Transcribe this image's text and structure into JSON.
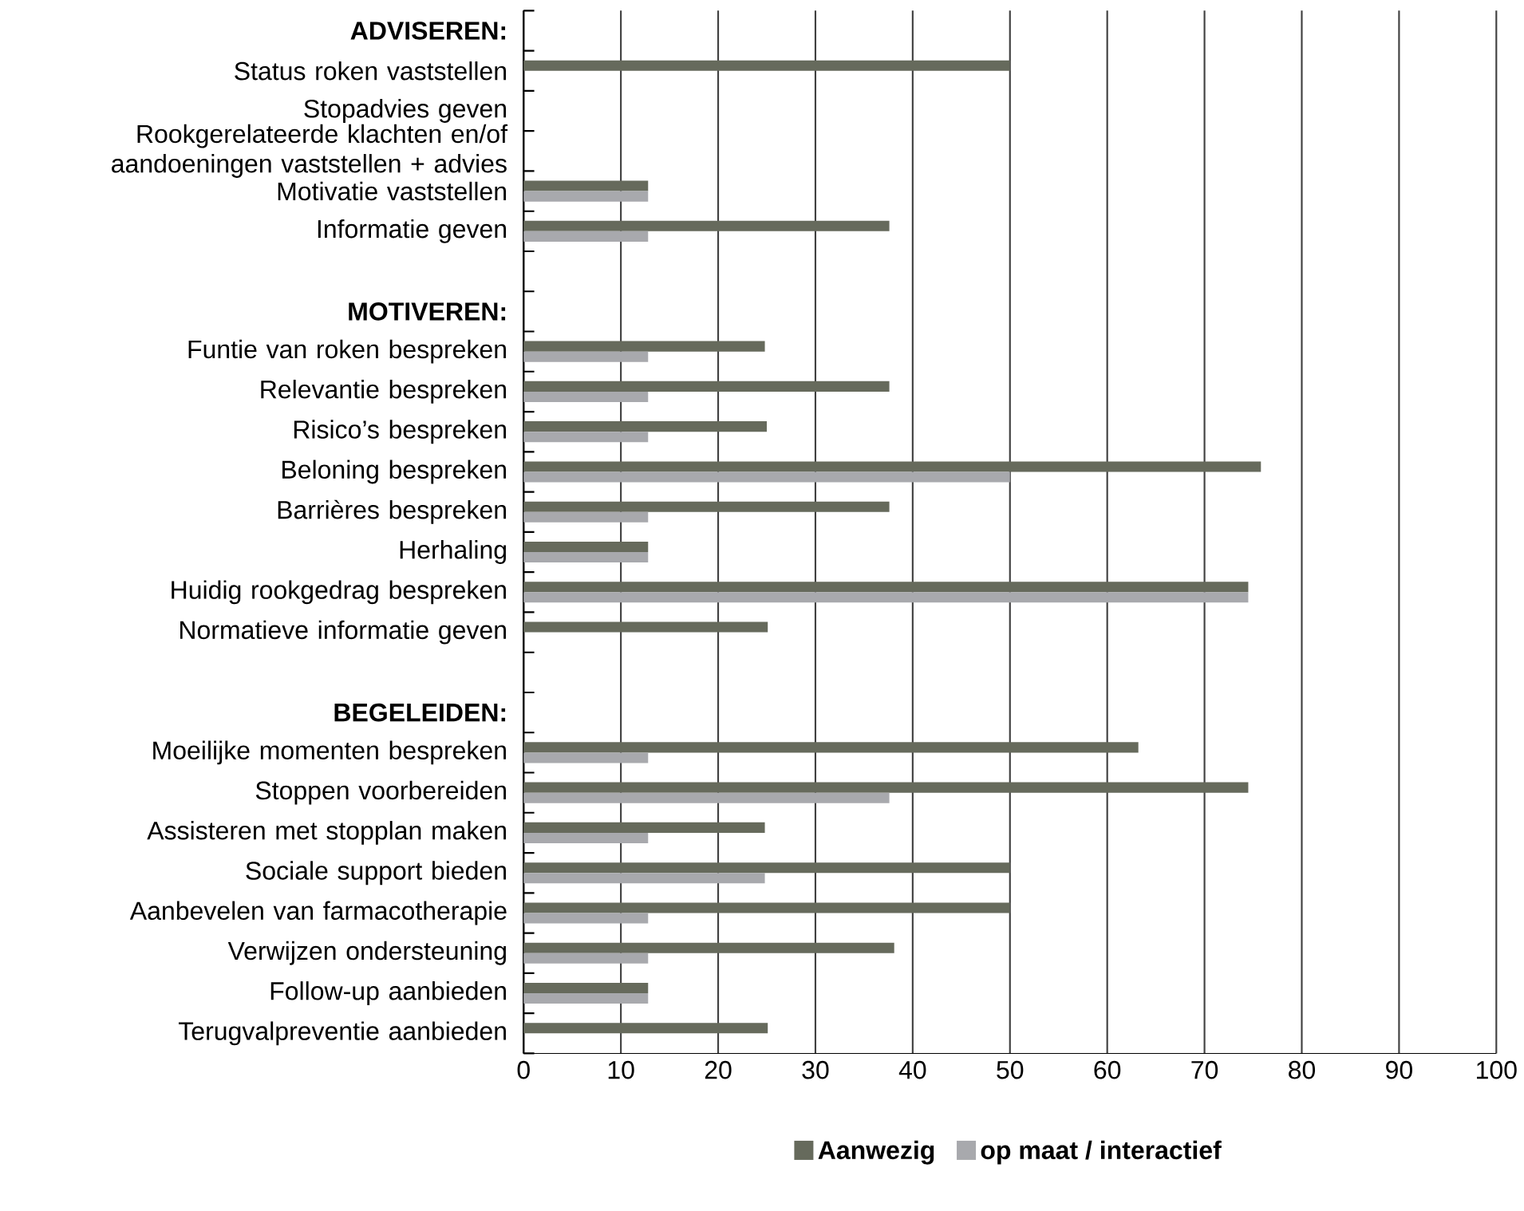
{
  "chart_data": {
    "type": "bar",
    "orientation": "horizontal",
    "categories": [
      "**ADVISEREN:**",
      "Status roken vaststellen",
      "Stopadvies geven",
      "Rookgerelateerde klachten en/of aandoeningen vaststellen + advies",
      "Motivatie vaststellen",
      "Informatie geven",
      null,
      "**MOTIVEREN:**",
      "Funtie van roken bespreken",
      "Relevantie bespreken",
      "Risico’s bespreken",
      "Beloning bespreken",
      "Barrières bespreken",
      "Herhaling",
      "Huidig rookgedrag bespreken",
      "Normatieve informatie geven",
      null,
      "**BEGELEIDEN:**",
      "Moeilijke momenten bespreken",
      "Stoppen voorbereiden",
      "Assisteren met stopplan maken",
      "Sociale support bieden",
      "Aanbevelen van farmacotherapie",
      "Verwijzen ondersteuning",
      "Follow-up aanbieden",
      "Terugvalpreventie aanbieden"
    ],
    "series": [
      {
        "name": "Aanwezig",
        "color": "#666a5c",
        "values": [
          null,
          50,
          0,
          0,
          12.8,
          37.6,
          null,
          null,
          24.8,
          37.6,
          25,
          75.8,
          37.6,
          12.8,
          74.5,
          25.1,
          null,
          null,
          63.2,
          74.5,
          24.8,
          50,
          50,
          38.1,
          12.8,
          25.1
        ]
      },
      {
        "name": "op maat / interactief",
        "color": "#a8a9ad",
        "values": [
          null,
          0,
          0,
          0,
          12.8,
          12.8,
          null,
          null,
          12.8,
          12.8,
          12.8,
          50,
          12.8,
          12.8,
          74.5,
          0,
          null,
          null,
          12.8,
          37.6,
          12.8,
          24.8,
          12.8,
          12.8,
          12.8,
          0
        ]
      }
    ],
    "xlim": [
      0,
      100
    ],
    "xticks": [
      0,
      10,
      20,
      30,
      40,
      50,
      60,
      70,
      80,
      90,
      100
    ],
    "grid": "x",
    "legend": "bottom"
  }
}
